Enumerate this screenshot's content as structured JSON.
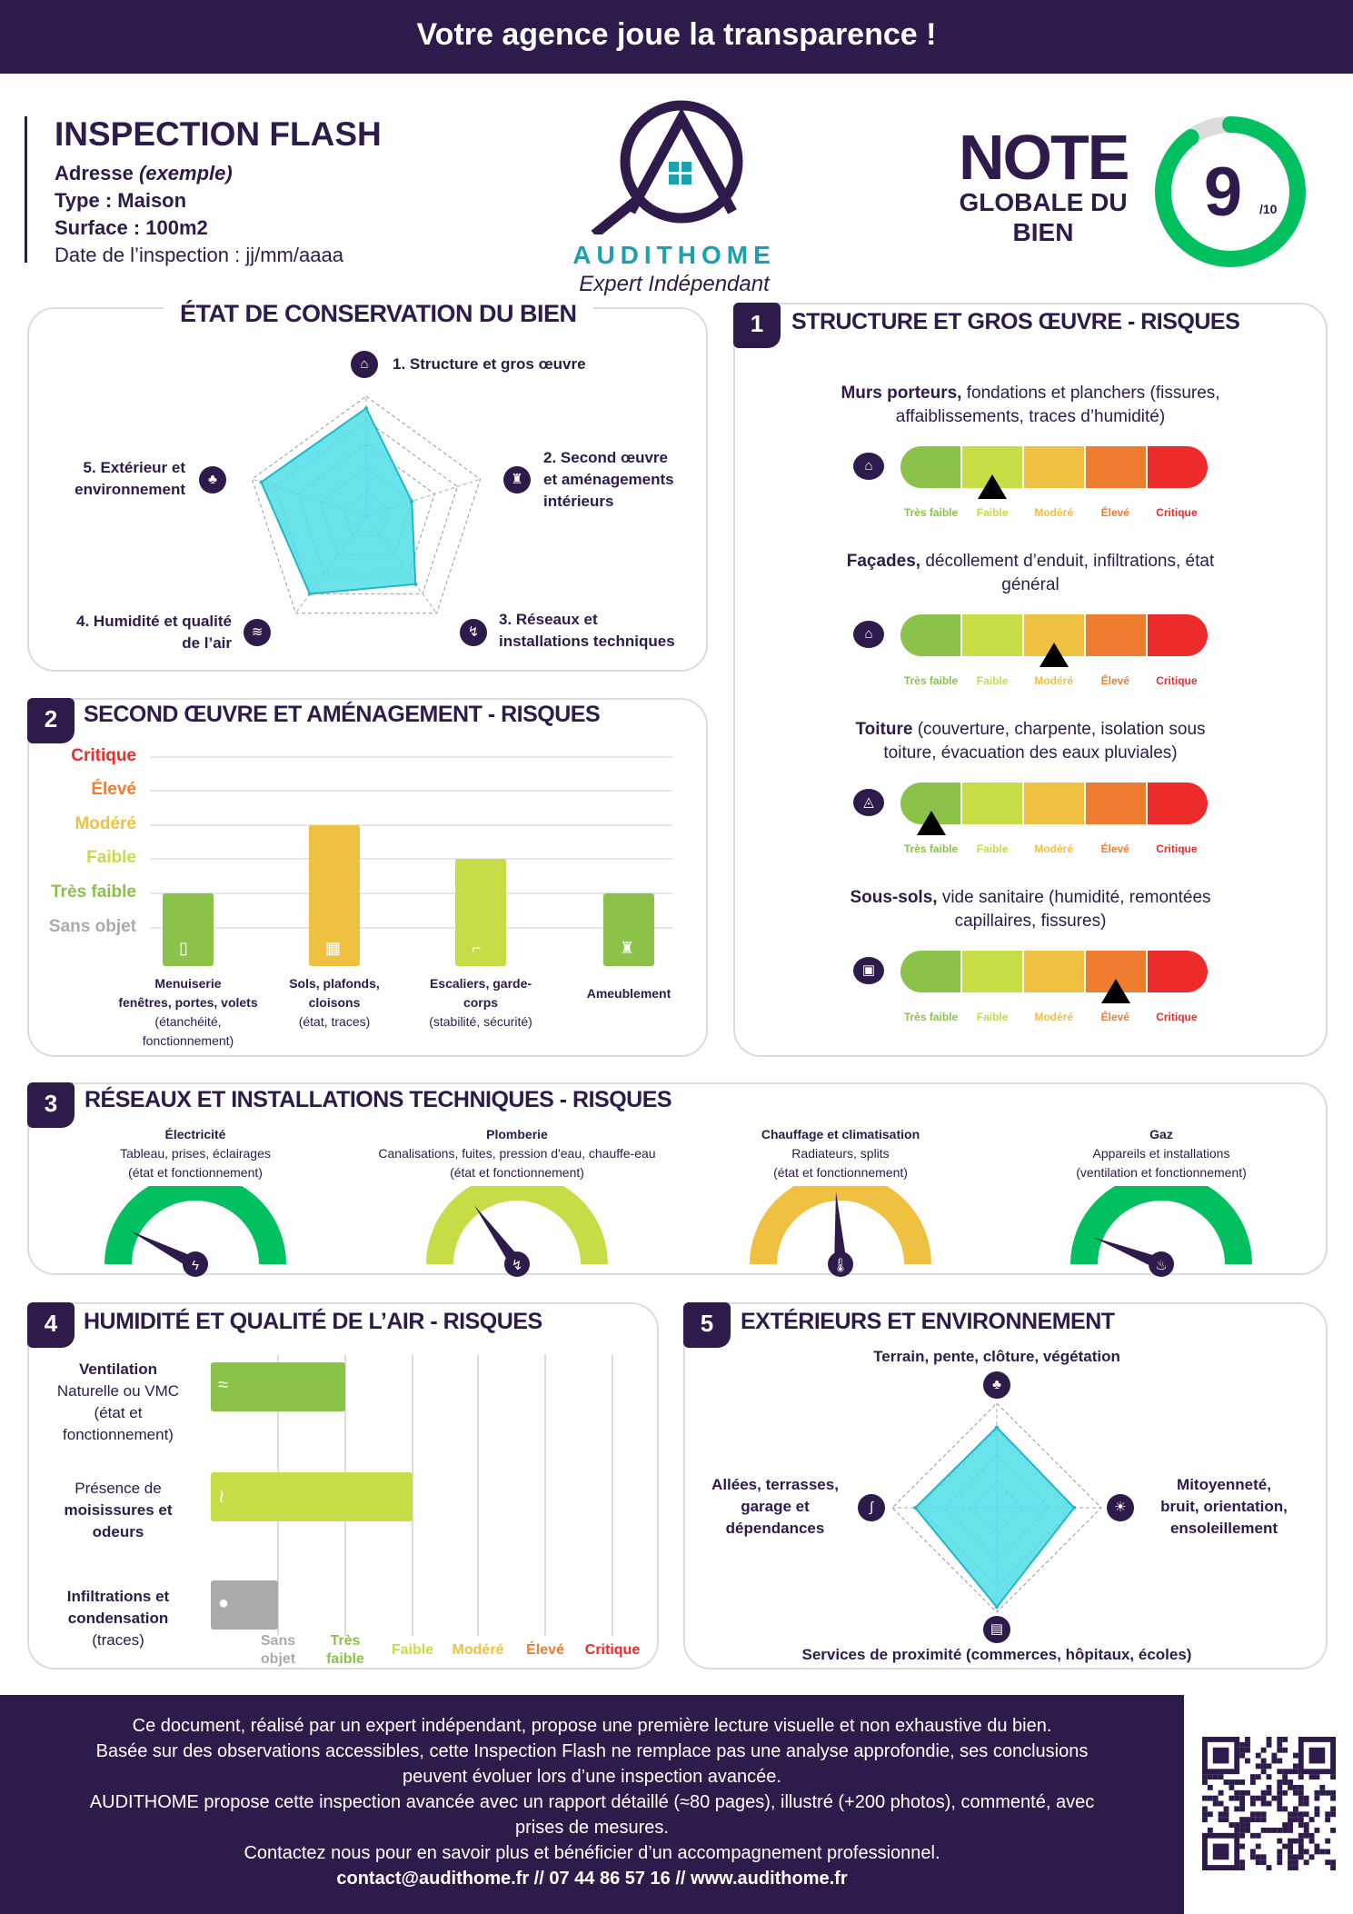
{
  "header": {
    "title": "Votre agence joue la transparence !"
  },
  "info": {
    "title": "INSPECTION FLASH",
    "address_label": "Adresse",
    "address_value": "(exemple)",
    "type": "Type : Maison",
    "surface": "Surface : 100m2",
    "date": "Date de l’inspection : jj/mm/aaaa"
  },
  "logo": {
    "brand": "AUDITHOME",
    "tagline": "Expert Indépendant"
  },
  "score": {
    "note": "NOTE",
    "line2": "GLOBALE DU",
    "line3": "BIEN",
    "value": "9",
    "max": "/10",
    "fraction": 0.9,
    "color": "#00c060"
  },
  "colors": {
    "primary": "#2e1a4b",
    "radar": "#4fdde6",
    "tres_faible": "#8bc34a",
    "faible": "#c8dc45",
    "modere": "#f0c040",
    "eleve": "#ee7d30",
    "critique": "#ee2b2b",
    "sans_objet": "#aaaaaa"
  },
  "etat": {
    "title": "ÉTAT DE CONSERVATION DU BIEN",
    "axes": [
      {
        "l1": "1. Structure et gros œuvre",
        "icon": "house-icon",
        "value": 4.5
      },
      {
        "l1": "2. Second œuvre",
        "l2": "et aménagements",
        "l3": "intérieurs",
        "icon": "armchair-icon",
        "value": 2
      },
      {
        "l1": "3. Réseaux et",
        "l2": "installations techniques",
        "icon": "pipe-icon",
        "value": 3.5
      },
      {
        "l1": "4. Humidité et qualité",
        "l2": "de l’air",
        "icon": "humidity-icon",
        "value": 4
      },
      {
        "l1": "5. Extérieur et",
        "l2": "environnement",
        "icon": "tree-icon",
        "value": 4.6
      }
    ],
    "max": 5
  },
  "levels": [
    "Très faible",
    "Faible",
    "Modéré",
    "Élevé",
    "Critique"
  ],
  "s1": {
    "num": "1",
    "title": "STRUCTURE ET GROS ŒUVRE - RISQUES",
    "items": [
      {
        "bold": "Murs porteurs,",
        "rest": " fondations et planchers (fissures,",
        "l2": "affaiblissements, traces d’humidité)",
        "icon": "house-icon",
        "level": "Faible"
      },
      {
        "bold": "Façades,",
        "rest": " décollement d’enduit, infiltrations, état",
        "l2": "général",
        "icon": "facade-icon",
        "level": "Modéré"
      },
      {
        "bold": "Toiture",
        "rest": " (couverture, charpente, isolation sous",
        "l2": "toiture, évacuation des eaux pluviales)",
        "icon": "roof-icon",
        "level": "Très faible"
      },
      {
        "bold": "Sous-sols,",
        "rest": " vide sanitaire (humidité, remontées",
        "l2": "capillaires, fissures)",
        "icon": "basement-icon",
        "level": "Élevé"
      }
    ]
  },
  "s2": {
    "num": "2",
    "title": "SECOND ŒUVRE ET AMÉNAGEMENT - RISQUES",
    "chart_data": {
      "type": "bar",
      "ylevels": [
        "Sans objet",
        "Très faible",
        "Faible",
        "Modéré",
        "Élevé",
        "Critique"
      ],
      "categories": [
        {
          "l1": "Menuiserie",
          "l2": "fenêtres, portes, volets",
          "l3": "(étanchéité,",
          "l4": "fonctionnement)",
          "icon": "door-icon"
        },
        {
          "l1": "Sols, plafonds,",
          "l2": "cloisons",
          "l3": "(état, traces)",
          "icon": "floor-icon"
        },
        {
          "l1": "Escaliers, garde-",
          "l2": "corps",
          "l3": "(stabilité, sécurité)",
          "icon": "stairs-icon"
        },
        {
          "l1": "Ameublement",
          "icon": "armchair-icon"
        }
      ],
      "values": [
        "Très faible",
        "Modéré",
        "Faible",
        "Très faible"
      ]
    }
  },
  "s3": {
    "num": "3",
    "title": "RÉSEAUX ET INSTALLATIONS TECHNIQUES - RISQUES",
    "gauges": [
      {
        "name": "Électricité",
        "l1": "Tableau, prises, éclairages",
        "l2": "(état et fonctionnement)",
        "icon": "lightning-icon",
        "color": "#00c060",
        "value": 0.15
      },
      {
        "name": "Plomberie",
        "l1": "Canalisations, fuites, pression d'eau, chauffe-eau",
        "l2": "(état et fonctionnement)",
        "icon": "pipe-icon",
        "color": "#c8dc45",
        "value": 0.3
      },
      {
        "name": "Chauffage et climatisation",
        "l1": "Radiateurs, splits",
        "l2": "(état et fonctionnement)",
        "icon": "thermometer-icon",
        "color": "#f0c040",
        "value": 0.48
      },
      {
        "name": "Gaz",
        "l1": "Appareils et installations",
        "l2": "(ventilation et fonctionnement)",
        "icon": "flame-icon",
        "color": "#00c060",
        "value": 0.12
      }
    ]
  },
  "s4": {
    "num": "4",
    "title": "HUMIDITÉ ET QUALITÉ DE L’AIR - RISQUES",
    "xlevels": [
      {
        "l1": "Sans",
        "l2": "objet"
      },
      {
        "l1": "Très",
        "l2": "faible"
      },
      {
        "l1": "Faible"
      },
      {
        "l1": "Modéré"
      },
      {
        "l1": "Élevé"
      },
      {
        "l1": "Critique"
      }
    ],
    "rows": [
      {
        "l1": "Ventilation",
        "l2": "Naturelle ou VMC",
        "l3": "(état et",
        "l4": "fonctionnement)",
        "icon": "wind-icon",
        "level": 1
      },
      {
        "l1": "Présence de",
        "l2": "moisissures et",
        "l3": "odeurs",
        "icon": "steam-icon",
        "level": 2
      },
      {
        "l1": "Infiltrations et",
        "l2": "condensation",
        "l3": "(traces)",
        "icon": "drop-icon",
        "level": 0
      }
    ]
  },
  "s5": {
    "num": "5",
    "title": "EXTÉRIEURS ET ENVIRONNEMENT",
    "axes": [
      {
        "l1": "Terrain, pente, clôture, végétation",
        "icon": "tree-icon",
        "value": 3.85
      },
      {
        "l1": "Mitoyenneté,",
        "l2": "bruit, orientation,",
        "l3": "ensoleillement",
        "icon": "sun-icon",
        "value": 3.7
      },
      {
        "l1": "Services de proximité (commerces, hôpitaux, écoles)",
        "icon": "bus-icon",
        "value": 4.75
      },
      {
        "l1": "Allées, terrasses,",
        "l2": "garage et",
        "l3": "dépendances",
        "icon": "path-icon",
        "value": 3.9
      }
    ],
    "max": 5
  },
  "footer": {
    "lines": [
      "Ce document, réalisé par un expert indépendant, propose une première lecture visuelle et non exhaustive du bien.",
      "Basée sur des observations accessibles, cette Inspection Flash ne remplace pas une analyse approfondie, ses conclusions",
      "peuvent évoluer lors d’une inspection avancée.",
      "AUDITHOME propose cette inspection avancée avec un rapport détaillé (≈80 pages), illustré (+200 photos), commenté, avec",
      "prises de mesures.",
      "Contactez nous pour en savoir plus et bénéficier d’un accompagnement professionnel."
    ],
    "contact": "contact@audithome.fr // 07 44 86 57 16 // www.audithome.fr"
  }
}
